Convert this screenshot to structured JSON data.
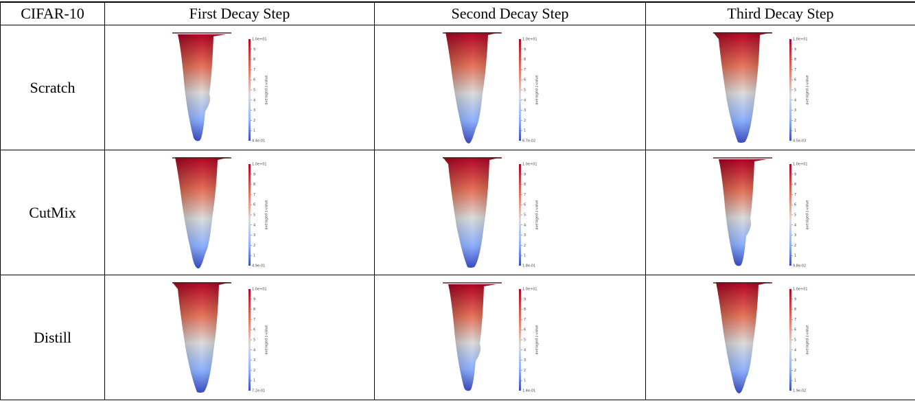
{
  "header": [
    "CIFAR-10",
    "First Decay Step",
    "Second Decay Step",
    "Third Decay Step"
  ],
  "colorbar": {
    "title": "averaged z-value",
    "ticks": [
      "9",
      "8",
      "7",
      "6",
      "5",
      "4",
      "3",
      "2",
      "1"
    ]
  },
  "rows": [
    {
      "label": "Scratch",
      "cells": [
        {
          "top": "1.0e+01",
          "bottom": "4.4e-01"
        },
        {
          "top": "1.0e+01",
          "bottom": "6.7e-02"
        },
        {
          "top": "1.0e+01",
          "bottom": "4.5e-03"
        }
      ]
    },
    {
      "label": "CutMix",
      "cells": [
        {
          "top": "1.0e+01",
          "bottom": "4.9e-01"
        },
        {
          "top": "1.0e+01",
          "bottom": "1.8e-01"
        },
        {
          "top": "1.0e+01",
          "bottom": "9.8e-02"
        }
      ]
    },
    {
      "label": "Distill",
      "cells": [
        {
          "top": "1.0e+01",
          "bottom": "7.2e-01"
        },
        {
          "top": "1.0e+01",
          "bottom": "1.4e-01"
        },
        {
          "top": "1.0e+01",
          "bottom": "1.9e-02"
        }
      ]
    }
  ]
}
